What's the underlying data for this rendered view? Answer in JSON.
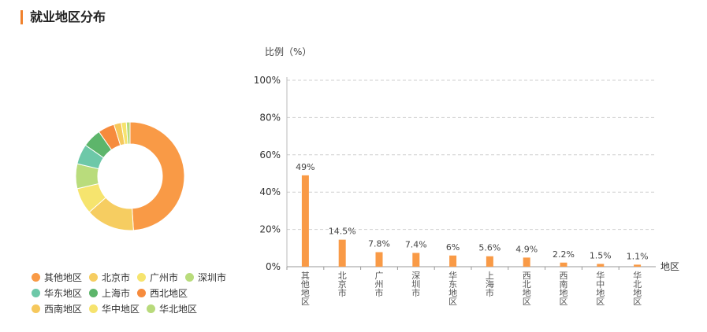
{
  "section": {
    "title": "就业地区分布"
  },
  "donut": {
    "legend_rows": [
      [
        {
          "label": "其他地区",
          "color": "#f99a46"
        },
        {
          "label": "北京市",
          "color": "#f6cd61"
        },
        {
          "label": "广州市",
          "color": "#f6e46e"
        },
        {
          "label": "深圳市",
          "color": "#b9dc7c"
        }
      ],
      [
        {
          "label": "华东地区",
          "color": "#6dc8a8"
        },
        {
          "label": "上海市",
          "color": "#5db56b"
        },
        {
          "label": "西北地区",
          "color": "#f68b3d"
        }
      ],
      [
        {
          "label": "西南地区",
          "color": "#f6c85c"
        },
        {
          "label": "华中地区",
          "color": "#f6e36e"
        },
        {
          "label": "华北地区",
          "color": "#b8da7b"
        }
      ]
    ]
  },
  "chart_data": {
    "type": "bar",
    "title": "",
    "ylabel": "比例（%）",
    "xlabel": "地区",
    "ylim": [
      0,
      100
    ],
    "yticks": [
      "0%",
      "20%",
      "40%",
      "60%",
      "80%",
      "100%"
    ],
    "categories": [
      "其他地区",
      "北京市",
      "广州市",
      "深圳市",
      "华东地区",
      "上海市",
      "西北地区",
      "西南地区",
      "华中地区",
      "华北地区"
    ],
    "values": [
      49,
      14.5,
      7.8,
      7.4,
      6,
      5.6,
      4.9,
      2.2,
      1.5,
      1.1
    ],
    "value_labels": [
      "49%",
      "14.5%",
      "7.8%",
      "7.4%",
      "6%",
      "5.6%",
      "4.9%",
      "2.2%",
      "1.5%",
      "1.1%"
    ],
    "bar_color": "#f99a46",
    "grid": true,
    "slice_colors": [
      "#f99a46",
      "#f6cd61",
      "#f6e46e",
      "#b9dc7c",
      "#6dc8a8",
      "#5db56b",
      "#f68b3d",
      "#f6c85c",
      "#f6e36e",
      "#b8da7b"
    ]
  }
}
